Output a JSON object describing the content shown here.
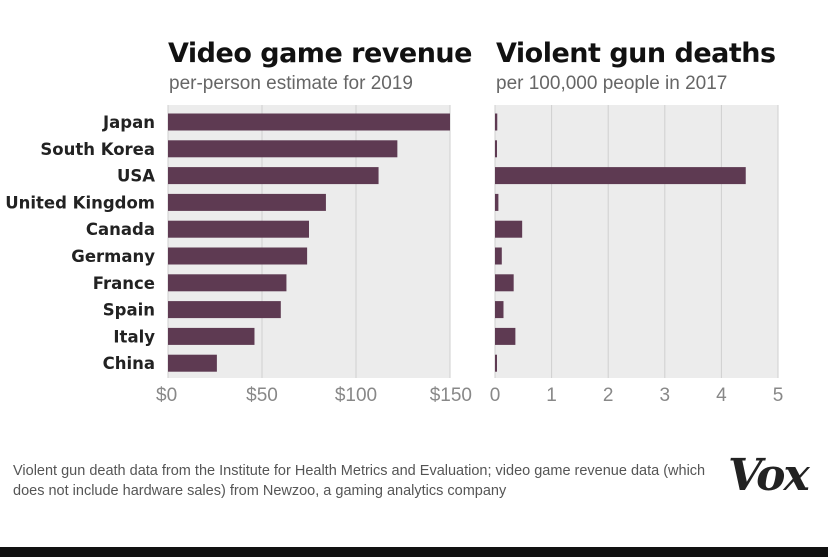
{
  "chart_data": [
    {
      "type": "bar",
      "orientation": "horizontal",
      "title": "Video game revenue",
      "subtitle": "per-person estimate for 2019",
      "categories": [
        "Japan",
        "South Korea",
        "USA",
        "United Kingdom",
        "Canada",
        "Germany",
        "France",
        "Spain",
        "Italy",
        "China"
      ],
      "values": [
        150,
        122,
        112,
        84,
        75,
        74,
        63,
        60,
        46,
        26
      ],
      "xlim": [
        0,
        150
      ],
      "ticks": [
        0,
        50,
        100,
        150
      ],
      "tick_labels": [
        "$0",
        "$50",
        "$100",
        "$150"
      ],
      "grid": true,
      "bar_color": "#5e3a52",
      "background_color": "#ececec"
    },
    {
      "type": "bar",
      "orientation": "horizontal",
      "title": "Violent gun deaths",
      "subtitle": "per 100,000 people in 2017",
      "categories": [
        "Japan",
        "South Korea",
        "USA",
        "United Kingdom",
        "Canada",
        "Germany",
        "France",
        "Spain",
        "Italy",
        "China"
      ],
      "values": [
        0.04,
        0.03,
        4.43,
        0.06,
        0.48,
        0.12,
        0.33,
        0.15,
        0.36,
        0.03
      ],
      "xlim": [
        0,
        5
      ],
      "ticks": [
        0,
        1,
        2,
        3,
        4,
        5
      ],
      "tick_labels": [
        "0",
        "1",
        "2",
        "3",
        "4",
        "5"
      ],
      "grid": true,
      "bar_color": "#5e3a52",
      "background_color": "#ececec"
    }
  ],
  "footer": {
    "note": "Violent gun death data from the Institute for Health Metrics and Evaluation; video game revenue data (which does not include hardware sales) from Newzoo, a gaming analytics company"
  },
  "logo": {
    "text": "Vox"
  }
}
